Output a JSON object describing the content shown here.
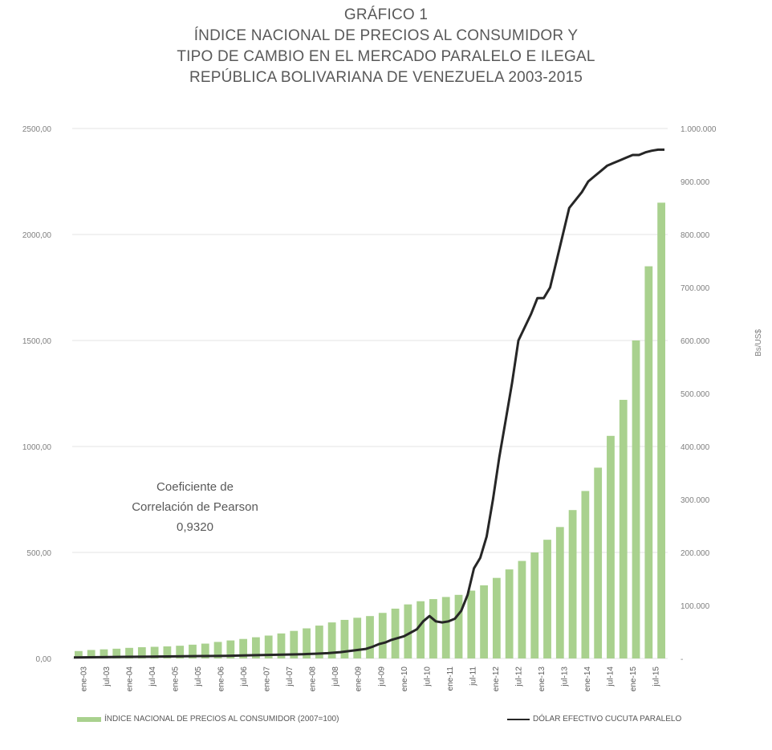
{
  "title_lines": [
    "GRÁFICO 1",
    "ÍNDICE NACIONAL DE PRECIOS AL CONSUMIDOR Y",
    "TIPO DE CAMBIO EN EL MERCADO PARALELO E ILEGAL",
    "REPÚBLICA BOLIVARIANA DE VENEZUELA 2003-2015"
  ],
  "annotation_lines": [
    "Coeficiente de",
    "Correlación de Pearson",
    "0,9320"
  ],
  "y2_title": "Bs/US$",
  "colors": {
    "bar": "#a9d18e",
    "line": "#262626",
    "grid": "#e3e3e3",
    "text": "#595959"
  },
  "chart_data": {
    "type": "bar",
    "x_tick_labels": [
      "ene-03",
      "jul-03",
      "ene-04",
      "jul-04",
      "ene-05",
      "jul-05",
      "ene-06",
      "jul-06",
      "ene-07",
      "jul-07",
      "ene-08",
      "jul-08",
      "ene-09",
      "jul-09",
      "ene-10",
      "jul-10",
      "ene-11",
      "jul-11",
      "ene-12",
      "jul-12",
      "ene-13",
      "jul-13",
      "ene-14",
      "jul-14",
      "ene-15",
      "jul-15"
    ],
    "y_left": {
      "ylim": [
        0,
        2500
      ],
      "ticks": [
        0,
        500,
        1000,
        1500,
        2000,
        2500
      ],
      "tick_labels": [
        "0,00",
        "500,00",
        "1000,00",
        "1500,00",
        "2000,00",
        "2500,00"
      ]
    },
    "y_right": {
      "ylim": [
        0,
        1000000
      ],
      "ticks": [
        0,
        100000,
        200000,
        300000,
        400000,
        500000,
        600000,
        700000,
        800000,
        900000,
        1000000
      ],
      "tick_labels": [
        "-",
        "100.000",
        "200.000",
        "300.000",
        "400.000",
        "500.000",
        "600.000",
        "700.000",
        "800.000",
        "900.000",
        "1.000.000"
      ]
    },
    "series": [
      {
        "name": "ÍNDICE NACIONAL DE PRECIOS AL CONSUMIDOR (2007=100)",
        "axis": "left",
        "kind": "bar",
        "values": [
          35,
          40,
          43,
          46,
          50,
          53,
          55,
          57,
          60,
          65,
          70,
          78,
          85,
          92,
          100,
          108,
          118,
          130,
          142,
          155,
          170,
          182,
          192,
          200,
          215,
          235,
          255,
          270,
          280,
          290,
          300,
          320,
          345,
          380,
          420,
          460,
          500,
          560,
          620,
          700,
          790,
          900,
          1050,
          1220,
          1500,
          1850,
          2150
        ]
      },
      {
        "name": "DÓLAR EFECTIVO CUCUTA PARALELO",
        "axis": "right",
        "kind": "line",
        "x_index": [
          0,
          4,
          8,
          12,
          16,
          20,
          24,
          28,
          32,
          36,
          38,
          40,
          42,
          44,
          46,
          47,
          48,
          49,
          50,
          52,
          54,
          55,
          56,
          57,
          58,
          59,
          60,
          61,
          62,
          63,
          64,
          65,
          66,
          67,
          68,
          69,
          70,
          72,
          73,
          74,
          75,
          76,
          77,
          78,
          80,
          81,
          82,
          83,
          84,
          85,
          86,
          87,
          88,
          89,
          90,
          91,
          92,
          93
        ],
        "values": [
          2000,
          2500,
          3000,
          3500,
          4000,
          4500,
          5000,
          6000,
          7000,
          8000,
          9000,
          10000,
          12000,
          15000,
          18000,
          22000,
          27000,
          30000,
          35000,
          42000,
          55000,
          70000,
          80000,
          70000,
          68000,
          70000,
          75000,
          90000,
          120000,
          170000,
          190000,
          230000,
          300000,
          380000,
          450000,
          520000,
          600000,
          650000,
          680000,
          680000,
          700000,
          750000,
          800000,
          850000,
          880000,
          900000,
          910000,
          920000,
          930000,
          935000,
          940000,
          945000,
          950000,
          950000,
          955000,
          958000,
          960000,
          960000
        ]
      }
    ],
    "grid": true,
    "legend_position": "bottom"
  }
}
